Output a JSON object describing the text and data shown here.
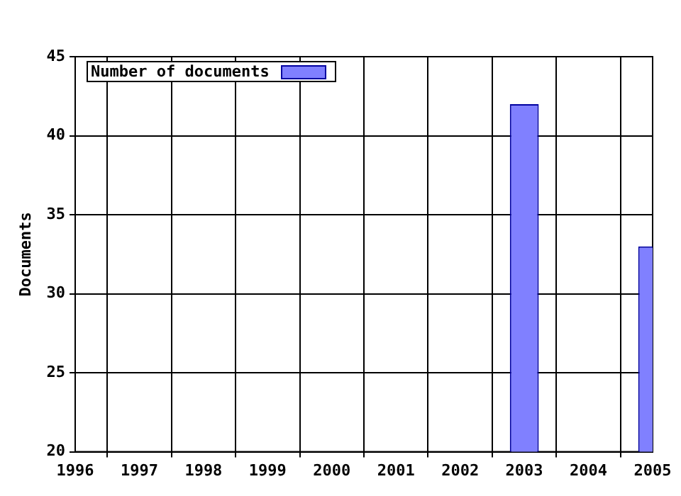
{
  "chart_data": {
    "type": "bar",
    "ylabel": "Documents",
    "x": [
      2003,
      2005
    ],
    "series": [
      {
        "name": "Number of documents",
        "color": "#8080ff",
        "values": [
          42,
          33
        ]
      }
    ],
    "xlim": [
      1996,
      2005
    ],
    "xticks": [
      1996,
      1997,
      1998,
      1999,
      2000,
      2001,
      2002,
      2003,
      2004,
      2005
    ],
    "ylim": [
      20,
      45
    ],
    "yticks": [
      20,
      25,
      30,
      35,
      40,
      45
    ],
    "grid": true,
    "legend": "top left"
  }
}
